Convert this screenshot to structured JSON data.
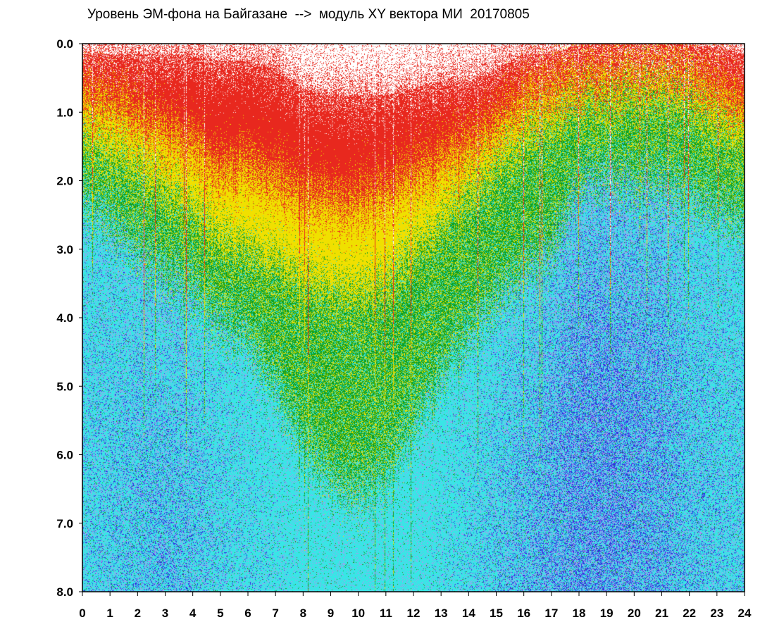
{
  "chart_data": {
    "type": "heatmap",
    "title": "Уровень ЭМ-фона на Байгазане  -->  модуль XY вектора МИ  20170805",
    "x_ticks": [
      "0",
      "1",
      "2",
      "3",
      "4",
      "5",
      "6",
      "7",
      "8",
      "9",
      "10",
      "11",
      "12",
      "13",
      "14",
      "15",
      "16",
      "17",
      "18",
      "19",
      "20",
      "21",
      "22",
      "23",
      "24"
    ],
    "y_ticks": [
      "0.0",
      "1.0",
      "2.0",
      "3.0",
      "4.0",
      "5.0",
      "6.0",
      "7.0",
      "8.0"
    ],
    "xlim": [
      0,
      24
    ],
    "ylim": [
      8.0,
      0.0
    ],
    "y_inverted": true,
    "grid": false,
    "colors": {
      "red": "#e8281e",
      "yellow": "#f0e000",
      "green": "#10a020",
      "cyan": "#38e6e6",
      "blue": "#3030e0",
      "lavender": "#a0a0f0"
    },
    "boundaries_by_hour": {
      "x": [
        0,
        1,
        2,
        3,
        4,
        5,
        6,
        7,
        8,
        9,
        10,
        11,
        12,
        13,
        14,
        15,
        16,
        17,
        18,
        19,
        20,
        21,
        22,
        23,
        24
      ],
      "red_start": [
        0.2,
        0.2,
        0.2,
        0.2,
        0.2,
        0.3,
        0.3,
        0.4,
        0.7,
        0.8,
        0.8,
        0.8,
        0.7,
        0.6,
        0.6,
        0.4,
        0.2,
        0.2,
        0.05,
        0.05,
        0.05,
        0.05,
        0.05,
        0.1,
        0.2
      ],
      "yellow_start": [
        0.8,
        0.9,
        1.1,
        1.3,
        1.5,
        1.8,
        1.8,
        2.0,
        2.2,
        2.3,
        2.3,
        2.2,
        1.9,
        1.7,
        1.5,
        1.2,
        0.8,
        0.7,
        0.5,
        0.5,
        0.4,
        0.4,
        0.5,
        0.7,
        0.9
      ],
      "green_start": [
        1.4,
        1.6,
        1.8,
        2.1,
        2.4,
        2.8,
        3.0,
        3.2,
        3.4,
        3.6,
        3.6,
        3.5,
        3.0,
        2.6,
        2.2,
        1.8,
        1.4,
        1.2,
        0.9,
        0.9,
        0.8,
        0.8,
        0.9,
        1.2,
        1.4
      ],
      "cyan_start": [
        2.3,
        2.6,
        3.0,
        3.3,
        3.6,
        4.0,
        4.3,
        5.0,
        5.8,
        6.4,
        6.5,
        6.3,
        5.5,
        4.8,
        4.2,
        3.7,
        3.3,
        3.0,
        2.0,
        1.9,
        2.0,
        2.0,
        2.2,
        2.4,
        2.6
      ],
      "blue_intensity": [
        0.3,
        0.4,
        0.5,
        0.6,
        0.5,
        0.3,
        0.2,
        0.1,
        0.0,
        0.0,
        0.0,
        0.0,
        0.0,
        0.1,
        0.2,
        0.4,
        0.6,
        0.8,
        1.0,
        1.0,
        0.9,
        0.8,
        0.5,
        0.4,
        0.3
      ]
    }
  }
}
